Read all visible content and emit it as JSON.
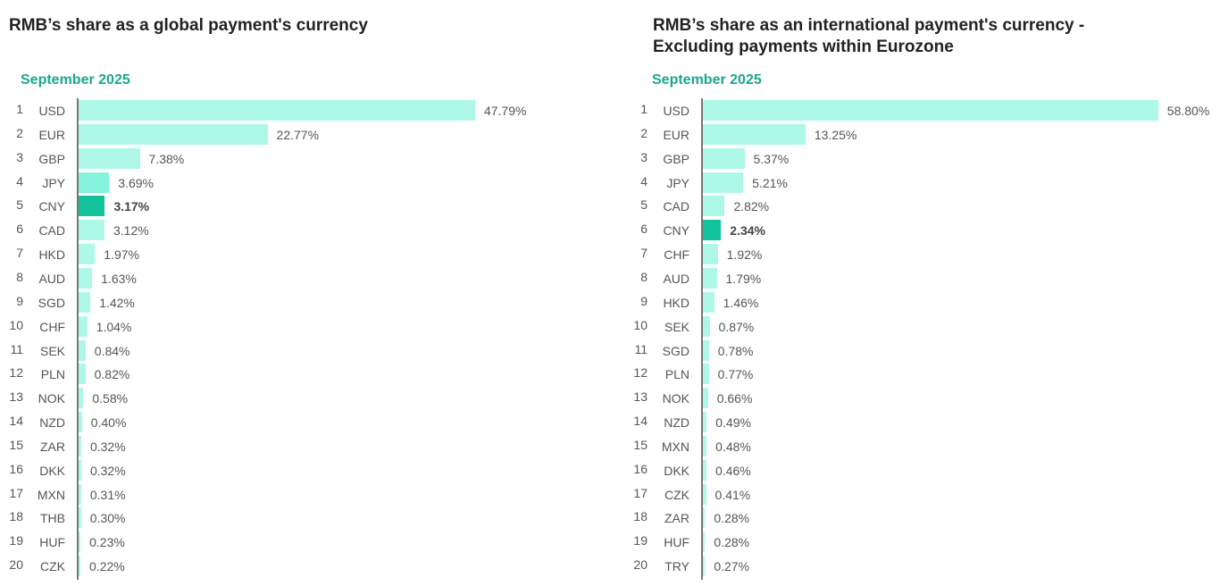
{
  "colors": {
    "bar": "#aef8e8",
    "mid": "#86f3dc",
    "highlight": "#12c29a",
    "title_accent": "#1aa88a"
  },
  "chart_data": [
    {
      "type": "bar",
      "orientation": "horizontal",
      "title": "RMB’s share as a global payment's currency",
      "subtitle": "September 2025",
      "categories": [
        "USD",
        "EUR",
        "GBP",
        "JPY",
        "CNY",
        "CAD",
        "HKD",
        "AUD",
        "SGD",
        "CHF",
        "SEK",
        "PLN",
        "NOK",
        "NZD",
        "ZAR",
        "DKK",
        "MXN",
        "THB",
        "HUF",
        "CZK"
      ],
      "values": [
        47.79,
        22.77,
        7.38,
        3.69,
        3.17,
        3.12,
        1.97,
        1.63,
        1.42,
        1.04,
        0.84,
        0.82,
        0.58,
        0.4,
        0.32,
        0.32,
        0.31,
        0.3,
        0.23,
        0.22
      ],
      "labels": [
        "47.79%",
        "22.77%",
        "7.38%",
        "3.69%",
        "3.17%",
        "3.12%",
        "1.97%",
        "1.63%",
        "1.42%",
        "1.04%",
        "0.84%",
        "0.82%",
        "0.58%",
        "0.40%",
        "0.32%",
        "0.32%",
        "0.31%",
        "0.30%",
        "0.23%",
        "0.22%"
      ],
      "highlight": "CNY",
      "secondary": "JPY",
      "unit": "%"
    },
    {
      "type": "bar",
      "orientation": "horizontal",
      "title": "RMB’s share as an international payment's currency - Excluding payments within Eurozone",
      "subtitle": "September 2025",
      "categories": [
        "USD",
        "EUR",
        "GBP",
        "JPY",
        "CAD",
        "CNY",
        "CHF",
        "AUD",
        "HKD",
        "SEK",
        "SGD",
        "PLN",
        "NOK",
        "NZD",
        "MXN",
        "DKK",
        "CZK",
        "ZAR",
        "HUF",
        "TRY"
      ],
      "values": [
        58.8,
        13.25,
        5.37,
        5.21,
        2.82,
        2.34,
        1.92,
        1.79,
        1.46,
        0.87,
        0.78,
        0.77,
        0.66,
        0.49,
        0.48,
        0.46,
        0.41,
        0.28,
        0.28,
        0.27
      ],
      "labels": [
        "58.80%",
        "13.25%",
        "5.37%",
        "5.21%",
        "2.82%",
        "2.34%",
        "1.92%",
        "1.79%",
        "1.46%",
        "0.87%",
        "0.78%",
        "0.77%",
        "0.66%",
        "0.49%",
        "0.48%",
        "0.46%",
        "0.41%",
        "0.28%",
        "0.28%",
        "0.27%"
      ],
      "highlight": "CNY",
      "secondary": null,
      "unit": "%"
    }
  ]
}
